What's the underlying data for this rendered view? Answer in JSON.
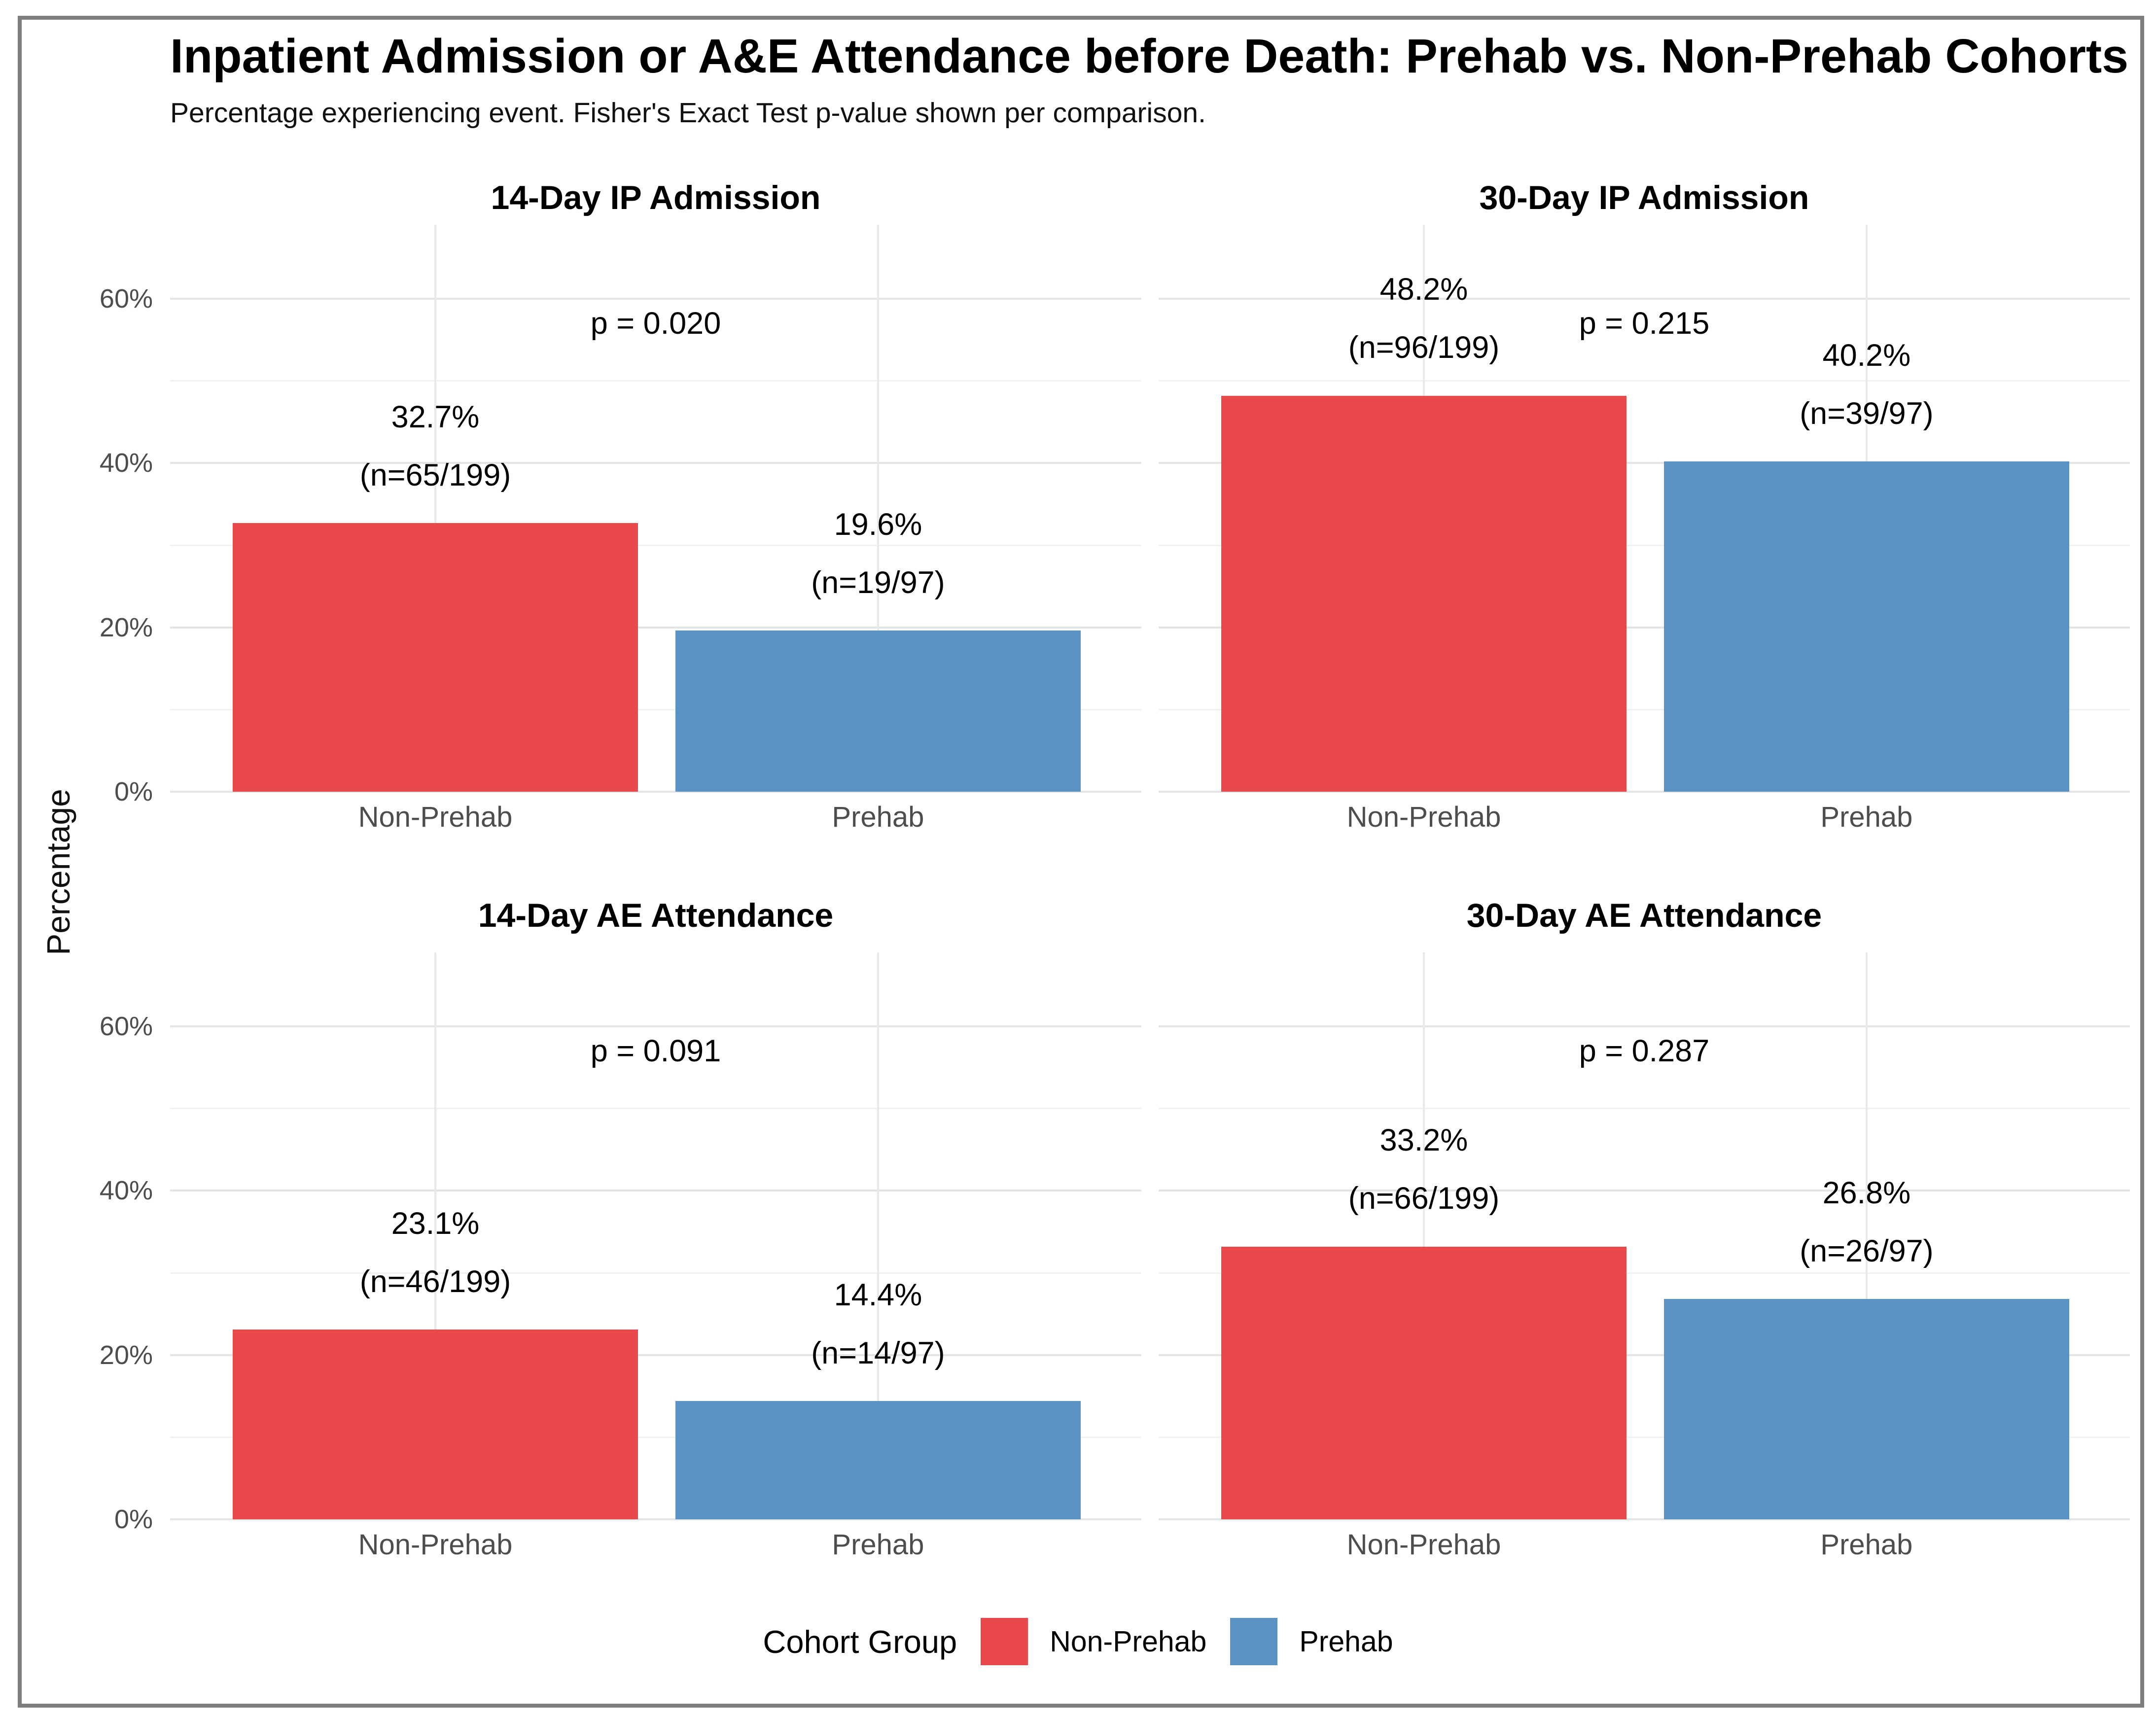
{
  "figure": {
    "title": "Inpatient Admission or A&E Attendance before Death: Prehab vs. Non-Prehab Cohorts",
    "subtitle": "Percentage experiencing event. Fisher's Exact Test p-value shown per comparison.",
    "y_axis_title": "Percentage",
    "border_color": "#7e7e7e"
  },
  "legend": {
    "title": "Cohort Group",
    "items": [
      {
        "label": "Non-Prehab",
        "color": "#e9494b"
      },
      {
        "label": "Prehab",
        "color": "#5b92c6"
      }
    ]
  },
  "chart_data": {
    "type": "bar",
    "categories": [
      "Non-Prehab",
      "Prehab"
    ],
    "colors": {
      "Non-Prehab": "#e9494b",
      "Prehab": "#5b92c6"
    },
    "ylabel": "Percentage",
    "ylim": [
      0,
      69
    ],
    "y_ticks": [
      {
        "value": 0,
        "label": "0%"
      },
      {
        "value": 20,
        "label": "20%"
      },
      {
        "value": 40,
        "label": "40%"
      },
      {
        "value": 60,
        "label": "60%"
      }
    ],
    "minor_gridlines": [
      10,
      30,
      50
    ],
    "grid": "horizontal major+minor, vertical at category centers",
    "legend_position": "bottom",
    "panels": [
      {
        "title": "14-Day IP Admission",
        "p_label": "p = 0.020",
        "bars": [
          {
            "group": "Non-Prehab",
            "value": 32.7,
            "label": "32.7%",
            "n_label": "(n=65/199)"
          },
          {
            "group": "Prehab",
            "value": 19.6,
            "label": "19.6%",
            "n_label": "(n=19/97)"
          }
        ]
      },
      {
        "title": "30-Day IP Admission",
        "p_label": "p = 0.215",
        "bars": [
          {
            "group": "Non-Prehab",
            "value": 48.2,
            "label": "48.2%",
            "n_label": "(n=96/199)"
          },
          {
            "group": "Prehab",
            "value": 40.2,
            "label": "40.2%",
            "n_label": "(n=39/97)"
          }
        ]
      },
      {
        "title": "14-Day AE Attendance",
        "p_label": "p = 0.091",
        "bars": [
          {
            "group": "Non-Prehab",
            "value": 23.1,
            "label": "23.1%",
            "n_label": "(n=46/199)"
          },
          {
            "group": "Prehab",
            "value": 14.4,
            "label": "14.4%",
            "n_label": "(n=14/97)"
          }
        ]
      },
      {
        "title": "30-Day AE Attendance",
        "p_label": "p = 0.287",
        "bars": [
          {
            "group": "Non-Prehab",
            "value": 33.2,
            "label": "33.2%",
            "n_label": "(n=66/199)"
          },
          {
            "group": "Prehab",
            "value": 26.8,
            "label": "26.8%",
            "n_label": "(n=26/97)"
          }
        ]
      }
    ]
  }
}
